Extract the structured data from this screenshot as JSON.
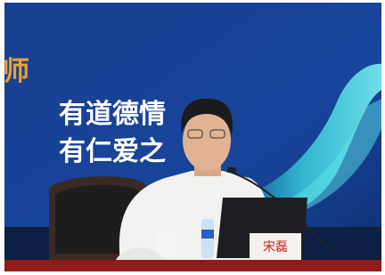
{
  "screen": {
    "banner_fragment": "师",
    "slogan_lines": [
      "有道德情",
      "有仁爱之"
    ],
    "name_card": "宋磊"
  }
}
